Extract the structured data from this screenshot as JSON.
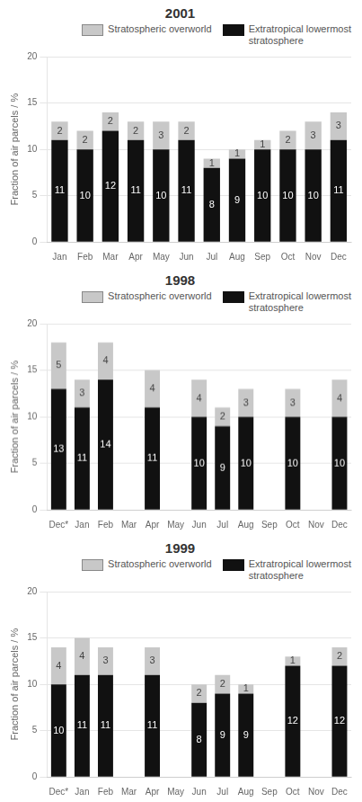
{
  "chart_data": [
    {
      "type": "bar",
      "title": "2001",
      "stacked": true,
      "grid": true,
      "legend": "upper right",
      "data_labels": true,
      "categories": [
        "Jan",
        "Feb",
        "Mar",
        "Apr",
        "May",
        "Jun",
        "Jul",
        "Aug",
        "Sep",
        "Oct",
        "Nov",
        "Dec"
      ],
      "series": [
        {
          "name": "Extratropical lowermost\nstratosphere",
          "color": "#111111",
          "values": [
            11,
            10,
            12,
            11,
            10,
            11,
            8,
            9,
            10,
            10,
            10,
            11
          ]
        },
        {
          "name": "Stratospheric overworld",
          "color": "#c8c8c8",
          "values": [
            2,
            2,
            2,
            2,
            3,
            2,
            1,
            1,
            1,
            2,
            3,
            3
          ]
        }
      ],
      "ylabel": "Fraction of air parcels / %",
      "ylim": [
        0,
        20
      ],
      "yticks": [
        0,
        5,
        10,
        15,
        20
      ]
    },
    {
      "type": "bar",
      "title": "1998",
      "stacked": true,
      "grid": true,
      "legend": "upper right",
      "data_labels": true,
      "categories": [
        "Dec*",
        "Jan",
        "Feb",
        "Mar",
        "Apr",
        "May",
        "Jun",
        "Jul",
        "Aug",
        "Sep",
        "Oct",
        "Nov",
        "Dec"
      ],
      "series": [
        {
          "name": "Extratropical lowermost\nstratosphere",
          "color": "#111111",
          "values": [
            13,
            11,
            14,
            0,
            11,
            0,
            10,
            9,
            10,
            0,
            10,
            0,
            10
          ]
        },
        {
          "name": "Stratospheric overworld",
          "color": "#c8c8c8",
          "values": [
            5,
            3,
            4,
            0,
            4,
            0,
            4,
            2,
            3,
            0,
            3,
            0,
            4
          ]
        }
      ],
      "ylabel": "Fraction of air parcels / %",
      "ylim": [
        0,
        20
      ],
      "yticks": [
        0,
        5,
        10,
        15,
        20
      ]
    },
    {
      "type": "bar",
      "title": "1999",
      "stacked": true,
      "grid": true,
      "legend": "upper right",
      "data_labels": true,
      "categories": [
        "Dec*",
        "Jan",
        "Feb",
        "Mar",
        "Apr",
        "May",
        "Jun",
        "Jul",
        "Aug",
        "Sep",
        "Oct",
        "Nov",
        "Dec"
      ],
      "series": [
        {
          "name": "Extratropical lowermost\nstratosphere",
          "color": "#111111",
          "values": [
            10,
            11,
            11,
            0,
            11,
            0,
            8,
            9,
            9,
            0,
            12,
            0,
            12
          ]
        },
        {
          "name": "Stratospheric overworld",
          "color": "#c8c8c8",
          "values": [
            4,
            4,
            3,
            0,
            3,
            0,
            2,
            2,
            1,
            0,
            1,
            0,
            2
          ]
        }
      ],
      "ylabel": "Fraction of air parcels / %",
      "ylim": [
        0,
        20
      ],
      "yticks": [
        0,
        5,
        10,
        15,
        20
      ]
    }
  ]
}
